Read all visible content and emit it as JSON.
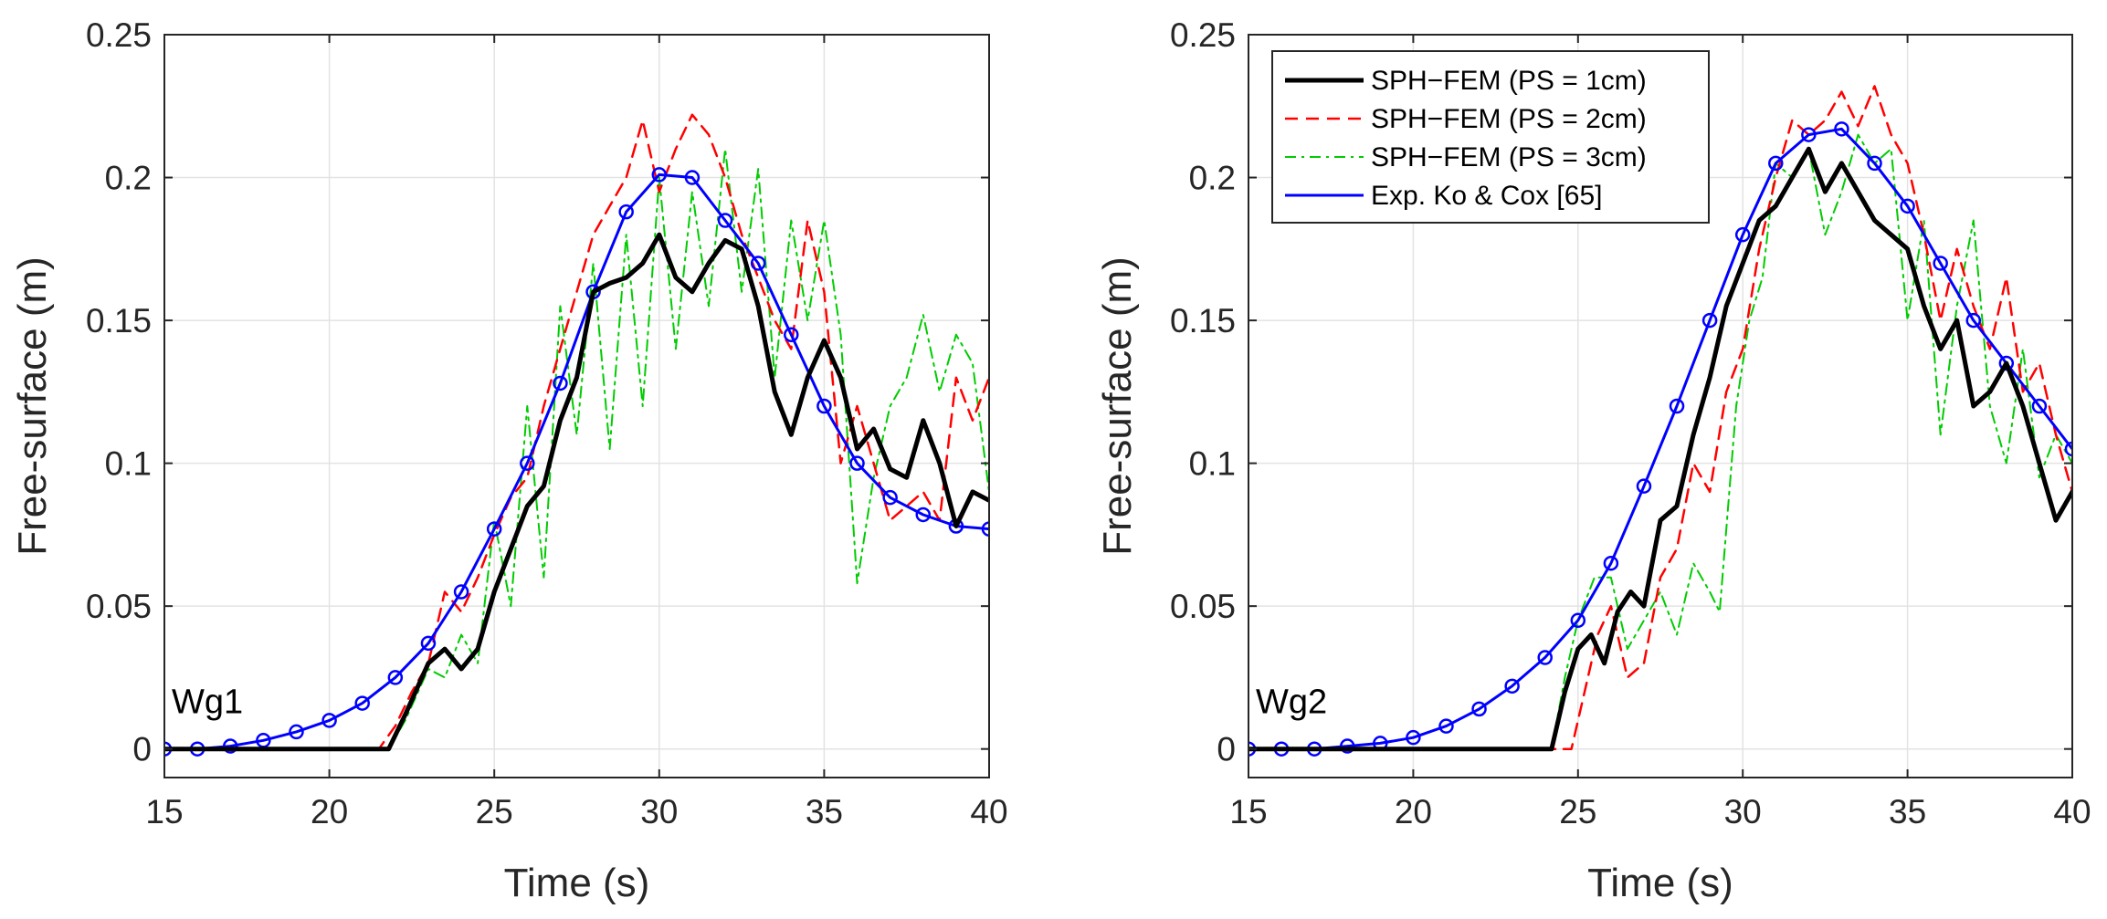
{
  "chart_data": [
    {
      "type": "line",
      "panel_label": "Wg1",
      "xlabel": "Time (s)",
      "ylabel": "Free-surface (m)",
      "xlim": [
        15,
        40
      ],
      "ylim": [
        -0.01,
        0.25
      ],
      "xticks": [
        15,
        20,
        25,
        30,
        35,
        40
      ],
      "yticks": [
        0,
        0.05,
        0.1,
        0.15,
        0.2,
        0.25
      ],
      "xtick_labels": [
        "15",
        "20",
        "25",
        "30",
        "35",
        "40"
      ],
      "ytick_labels": [
        "0",
        "0.05",
        "0.1",
        "0.15",
        "0.2",
        "0.25"
      ],
      "grid": true,
      "series": [
        {
          "name": "SPH−FEM (PS = 1cm)",
          "color": "#000000",
          "style": "solid",
          "x": [
            15,
            21.8,
            22.3,
            23,
            23.5,
            24,
            24.5,
            25,
            25.5,
            26,
            26.5,
            27,
            27.5,
            28,
            28.5,
            29,
            29.5,
            30,
            30.5,
            31,
            31.5,
            32,
            32.5,
            33,
            33.5,
            34,
            34.5,
            35,
            35.5,
            36,
            36.5,
            37,
            37.5,
            38,
            38.5,
            39,
            39.5,
            40
          ],
          "y": [
            0,
            0,
            0.012,
            0.03,
            0.035,
            0.028,
            0.035,
            0.055,
            0.07,
            0.085,
            0.092,
            0.115,
            0.13,
            0.16,
            0.163,
            0.165,
            0.17,
            0.18,
            0.165,
            0.16,
            0.17,
            0.178,
            0.175,
            0.155,
            0.125,
            0.11,
            0.13,
            0.143,
            0.13,
            0.105,
            0.112,
            0.098,
            0.095,
            0.115,
            0.1,
            0.078,
            0.09,
            0.087
          ]
        },
        {
          "name": "SPH−FEM (PS = 2cm)",
          "color": "#ff0000",
          "style": "dashed",
          "x": [
            15,
            21.5,
            22,
            22.5,
            23,
            23.5,
            24,
            24.5,
            25,
            25.5,
            26,
            26.5,
            27,
            27.5,
            28,
            28.5,
            29,
            29.5,
            30,
            30.5,
            31,
            31.5,
            32,
            32.5,
            33,
            33.5,
            34,
            34.5,
            35,
            35.5,
            36,
            36.5,
            37,
            37.5,
            38,
            38.5,
            39,
            39.5,
            40
          ],
          "y": [
            0,
            0,
            0.008,
            0.02,
            0.03,
            0.055,
            0.048,
            0.06,
            0.075,
            0.088,
            0.095,
            0.12,
            0.14,
            0.16,
            0.18,
            0.19,
            0.2,
            0.22,
            0.195,
            0.21,
            0.222,
            0.215,
            0.2,
            0.18,
            0.165,
            0.15,
            0.14,
            0.185,
            0.16,
            0.1,
            0.12,
            0.1,
            0.08,
            0.085,
            0.09,
            0.08,
            0.13,
            0.115,
            0.13
          ]
        },
        {
          "name": "SPH−FEM (PS = 3cm)",
          "color": "#00cc00",
          "style": "dashdot",
          "x": [
            15,
            21.8,
            22.3,
            23,
            23.5,
            24,
            24.5,
            25,
            25.5,
            26,
            26.5,
            27,
            27.5,
            28,
            28.5,
            29,
            29.5,
            30,
            30.5,
            31,
            31.5,
            32,
            32.5,
            33,
            33.5,
            34,
            34.5,
            35,
            35.5,
            36,
            36.5,
            37,
            37.5,
            38,
            38.5,
            39,
            39.5,
            40
          ],
          "y": [
            0,
            0,
            0.01,
            0.028,
            0.025,
            0.04,
            0.03,
            0.08,
            0.05,
            0.12,
            0.06,
            0.155,
            0.11,
            0.17,
            0.105,
            0.18,
            0.12,
            0.2,
            0.14,
            0.195,
            0.155,
            0.21,
            0.16,
            0.203,
            0.13,
            0.185,
            0.15,
            0.185,
            0.145,
            0.058,
            0.095,
            0.12,
            0.13,
            0.152,
            0.125,
            0.145,
            0.135,
            0.09
          ]
        },
        {
          "name": "Exp. Ko & Cox [65]",
          "color": "#0000ff",
          "style": "solid-marker",
          "x": [
            15,
            16,
            17,
            18,
            19,
            20,
            21,
            22,
            23,
            24,
            25,
            26,
            27,
            28,
            29,
            30,
            31,
            32,
            33,
            34,
            35,
            36,
            37,
            38,
            39,
            40
          ],
          "y": [
            0,
            0,
            0.001,
            0.003,
            0.006,
            0.01,
            0.016,
            0.025,
            0.037,
            0.055,
            0.077,
            0.1,
            0.128,
            0.16,
            0.188,
            0.201,
            0.2,
            0.185,
            0.17,
            0.145,
            0.12,
            0.1,
            0.088,
            0.082,
            0.078,
            0.077
          ]
        }
      ]
    },
    {
      "type": "line",
      "panel_label": "Wg2",
      "xlabel": "Time (s)",
      "ylabel": "Free-surface (m)",
      "xlim": [
        15,
        40
      ],
      "ylim": [
        -0.01,
        0.25
      ],
      "xticks": [
        15,
        20,
        25,
        30,
        35,
        40
      ],
      "yticks": [
        0,
        0.05,
        0.1,
        0.15,
        0.2,
        0.25
      ],
      "xtick_labels": [
        "15",
        "20",
        "25",
        "30",
        "35",
        "40"
      ],
      "ytick_labels": [
        "0",
        "0.05",
        "0.1",
        "0.15",
        "0.2",
        "0.25"
      ],
      "grid": true,
      "legend_position": "top-left",
      "series": [
        {
          "name": "SPH−FEM (PS = 1cm)",
          "color": "#000000",
          "style": "solid",
          "x": [
            15,
            24.2,
            24.6,
            25,
            25.4,
            25.8,
            26.2,
            26.6,
            27,
            27.5,
            28,
            28.5,
            29,
            29.5,
            30,
            30.5,
            31,
            31.5,
            32,
            32.5,
            33,
            33.5,
            34,
            34.5,
            35,
            35.5,
            36,
            36.5,
            37,
            37.5,
            38,
            38.5,
            39,
            39.5,
            40
          ],
          "y": [
            0,
            0,
            0.02,
            0.035,
            0.04,
            0.03,
            0.048,
            0.055,
            0.05,
            0.08,
            0.085,
            0.11,
            0.13,
            0.155,
            0.17,
            0.185,
            0.19,
            0.2,
            0.21,
            0.195,
            0.205,
            0.195,
            0.185,
            0.18,
            0.175,
            0.155,
            0.14,
            0.15,
            0.12,
            0.125,
            0.135,
            0.12,
            0.1,
            0.08,
            0.09
          ]
        },
        {
          "name": "SPH−FEM (PS = 2cm)",
          "color": "#ff0000",
          "style": "dashed",
          "x": [
            15,
            24.8,
            25.2,
            25.6,
            26,
            26.5,
            27,
            27.5,
            28,
            28.5,
            29,
            29.5,
            30,
            30.5,
            31,
            31.5,
            32,
            32.5,
            33,
            33.5,
            34,
            34.5,
            35,
            35.5,
            36,
            36.5,
            37,
            37.5,
            38,
            38.5,
            39,
            39.5,
            40
          ],
          "y": [
            0,
            0,
            0.02,
            0.04,
            0.05,
            0.025,
            0.03,
            0.06,
            0.07,
            0.1,
            0.09,
            0.125,
            0.14,
            0.175,
            0.2,
            0.22,
            0.215,
            0.22,
            0.23,
            0.218,
            0.232,
            0.215,
            0.205,
            0.18,
            0.15,
            0.175,
            0.155,
            0.14,
            0.165,
            0.125,
            0.135,
            0.11,
            0.09
          ]
        },
        {
          "name": "SPH−FEM (PS = 3cm)",
          "color": "#00cc00",
          "style": "dashdot",
          "x": [
            15,
            24.2,
            24.6,
            25,
            25.5,
            26,
            26.5,
            27,
            27.5,
            28,
            28.5,
            29,
            29.3,
            29.8,
            30.2,
            30.6,
            31,
            31.5,
            32,
            32.5,
            33,
            33.5,
            34,
            34.5,
            35,
            35.5,
            36,
            36.5,
            37,
            37.5,
            38,
            38.5,
            39,
            39.5,
            40
          ],
          "y": [
            0,
            0,
            0.025,
            0.045,
            0.06,
            0.06,
            0.035,
            0.045,
            0.055,
            0.04,
            0.065,
            0.055,
            0.048,
            0.12,
            0.15,
            0.165,
            0.205,
            0.2,
            0.21,
            0.18,
            0.195,
            0.215,
            0.205,
            0.21,
            0.15,
            0.185,
            0.11,
            0.155,
            0.185,
            0.12,
            0.1,
            0.14,
            0.095,
            0.11,
            0.1
          ]
        },
        {
          "name": "Exp. Ko & Cox [65]",
          "color": "#0000ff",
          "style": "solid-marker",
          "x": [
            15,
            16,
            17,
            18,
            19,
            20,
            21,
            22,
            23,
            24,
            25,
            26,
            27,
            28,
            29,
            30,
            31,
            32,
            33,
            34,
            35,
            36,
            37,
            38,
            39,
            40
          ],
          "y": [
            0,
            0,
            0,
            0.001,
            0.002,
            0.004,
            0.008,
            0.014,
            0.022,
            0.032,
            0.045,
            0.065,
            0.092,
            0.12,
            0.15,
            0.18,
            0.205,
            0.215,
            0.217,
            0.205,
            0.19,
            0.17,
            0.15,
            0.135,
            0.12,
            0.105
          ]
        }
      ]
    }
  ]
}
